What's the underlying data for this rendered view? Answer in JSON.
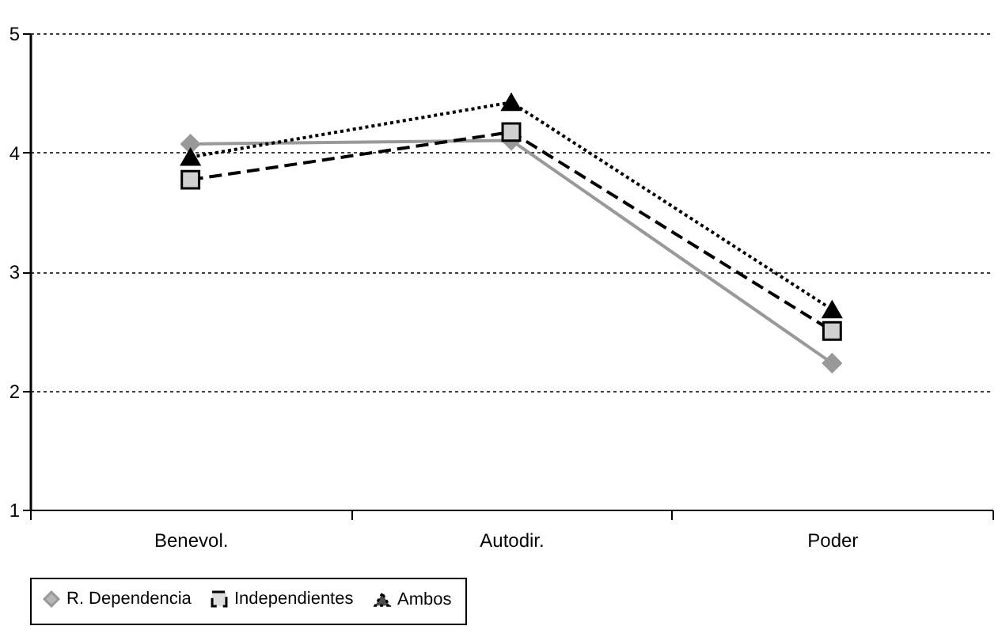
{
  "chart_data": {
    "type": "line",
    "categories": [
      "Benevol.",
      "Autodir.",
      "Poder"
    ],
    "ylim": [
      1,
      5
    ],
    "yticks": [
      1,
      2,
      3,
      4,
      5
    ],
    "grid": "y",
    "legend": "bottom",
    "series": [
      {
        "name": "R. Dependencia",
        "color": "#999999",
        "marker": "diamond",
        "line_style": "solid",
        "values": [
          4.07,
          4.1,
          2.23
        ]
      },
      {
        "name": "Independientes",
        "color": "#000000",
        "marker": "square",
        "line_style": "dashed",
        "values": [
          3.77,
          4.17,
          2.5
        ]
      },
      {
        "name": "Ambos",
        "color": "#000000",
        "marker": "triangle",
        "line_style": "dotted",
        "values": [
          3.96,
          4.42,
          2.68
        ]
      }
    ]
  }
}
